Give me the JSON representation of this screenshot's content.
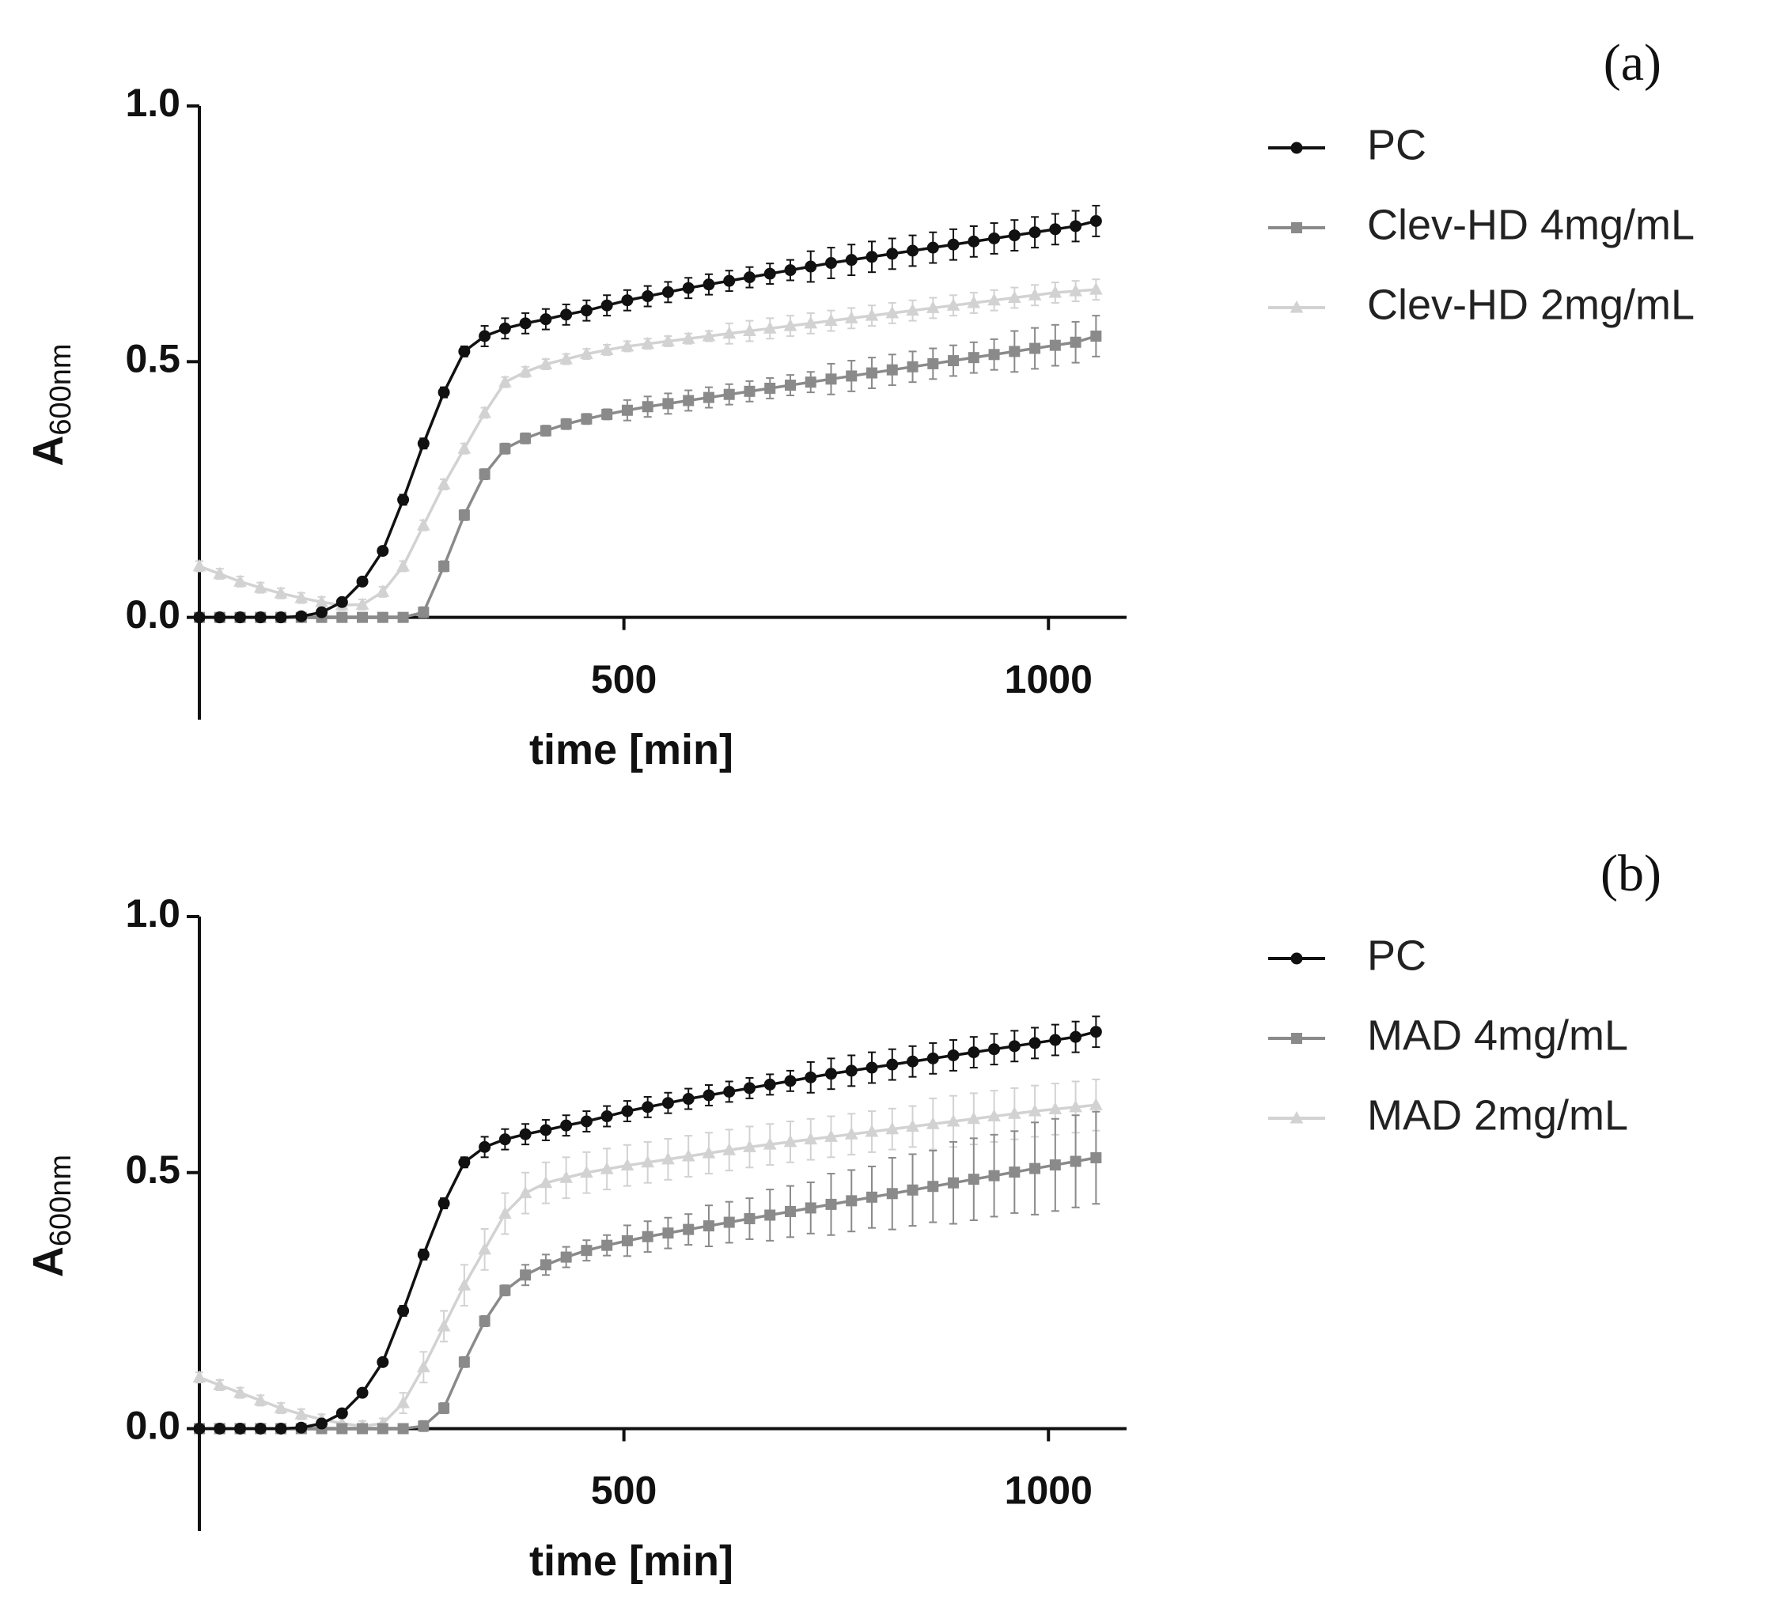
{
  "chart_data": [
    {
      "type": "line",
      "panel_label": "(a)",
      "x_label": "time [min]",
      "y_label": {
        "text": "A",
        "subscript": "600nm"
      },
      "xlim": [
        0,
        1092
      ],
      "xticks": [
        500,
        1000
      ],
      "ylim": [
        -0.2,
        1.0
      ],
      "yticks": [
        {
          "value": 0,
          "label": "0.0"
        },
        {
          "value": 0.5,
          "label": "0.5"
        },
        {
          "value": 1.0,
          "label": "1.0"
        }
      ],
      "x": [
        0,
        24,
        48,
        72,
        96,
        120,
        144,
        168,
        192,
        216,
        240,
        264,
        288,
        312,
        336,
        360,
        384,
        408,
        432,
        456,
        480,
        504,
        528,
        552,
        576,
        600,
        624,
        648,
        672,
        696,
        720,
        744,
        768,
        792,
        816,
        840,
        864,
        888,
        912,
        936,
        960,
        984,
        1008,
        1032,
        1056
      ],
      "series": [
        {
          "name": "PC",
          "color": "#111111",
          "marker": "circle",
          "values": [
            0,
            0,
            0,
            0,
            0,
            0.002,
            0.01,
            0.03,
            0.07,
            0.13,
            0.23,
            0.34,
            0.44,
            0.52,
            0.55,
            0.565,
            0.575,
            0.583,
            0.592,
            0.6,
            0.61,
            0.62,
            0.628,
            0.636,
            0.644,
            0.651,
            0.658,
            0.665,
            0.672,
            0.679,
            0.686,
            0.693,
            0.699,
            0.705,
            0.711,
            0.717,
            0.723,
            0.729,
            0.735,
            0.741,
            0.747,
            0.753,
            0.759,
            0.765,
            0.775
          ],
          "errors": [
            0,
            0,
            0,
            0,
            0,
            0,
            0,
            0,
            0,
            0,
            0.01,
            0.01,
            0.01,
            0.01,
            0.02,
            0.02,
            0.02,
            0.02,
            0.02,
            0.02,
            0.02,
            0.02,
            0.02,
            0.02,
            0.02,
            0.02,
            0.02,
            0.02,
            0.02,
            0.02,
            0.03,
            0.03,
            0.03,
            0.03,
            0.03,
            0.03,
            0.03,
            0.03,
            0.03,
            0.03,
            0.03,
            0.03,
            0.03,
            0.03,
            0.03
          ]
        },
        {
          "name": "Clev-HD 4mg/mL",
          "color": "#8a8a8a",
          "marker": "square",
          "values": [
            0,
            0,
            0,
            0,
            0,
            0,
            0,
            0,
            0,
            0,
            0,
            0.01,
            0.1,
            0.2,
            0.28,
            0.33,
            0.35,
            0.365,
            0.378,
            0.388,
            0.397,
            0.405,
            0.412,
            0.418,
            0.424,
            0.43,
            0.436,
            0.442,
            0.448,
            0.454,
            0.46,
            0.466,
            0.472,
            0.478,
            0.484,
            0.49,
            0.496,
            0.502,
            0.508,
            0.514,
            0.52,
            0.526,
            0.532,
            0.538,
            0.55
          ],
          "errors": [
            0,
            0,
            0,
            0,
            0,
            0,
            0,
            0,
            0,
            0,
            0,
            0.01,
            0.01,
            0.01,
            0.01,
            0.01,
            0.01,
            0.01,
            0.01,
            0.01,
            0.01,
            0.02,
            0.02,
            0.02,
            0.02,
            0.02,
            0.02,
            0.02,
            0.02,
            0.02,
            0.02,
            0.03,
            0.03,
            0.03,
            0.03,
            0.03,
            0.03,
            0.03,
            0.03,
            0.03,
            0.04,
            0.04,
            0.04,
            0.04,
            0.04
          ]
        },
        {
          "name": "Clev-HD 2mg/mL",
          "color": "#d2d2d2",
          "marker": "triangle",
          "values": [
            0.1,
            0.085,
            0.07,
            0.058,
            0.047,
            0.038,
            0.03,
            0.024,
            0.025,
            0.05,
            0.1,
            0.18,
            0.26,
            0.33,
            0.4,
            0.46,
            0.48,
            0.495,
            0.505,
            0.515,
            0.523,
            0.53,
            0.535,
            0.54,
            0.545,
            0.55,
            0.555,
            0.56,
            0.565,
            0.57,
            0.575,
            0.58,
            0.585,
            0.59,
            0.595,
            0.6,
            0.605,
            0.61,
            0.615,
            0.62,
            0.625,
            0.63,
            0.635,
            0.638,
            0.641
          ],
          "errors": [
            0.01,
            0.01,
            0.01,
            0.01,
            0.01,
            0.01,
            0.01,
            0.01,
            0.01,
            0.01,
            0.01,
            0.01,
            0.01,
            0.01,
            0.01,
            0.01,
            0.01,
            0.01,
            0.01,
            0.01,
            0.01,
            0.01,
            0.01,
            0.01,
            0.01,
            0.01,
            0.02,
            0.02,
            0.02,
            0.02,
            0.02,
            0.02,
            0.02,
            0.02,
            0.02,
            0.02,
            0.02,
            0.02,
            0.02,
            0.02,
            0.02,
            0.02,
            0.02,
            0.02,
            0.02
          ]
        }
      ]
    },
    {
      "type": "line",
      "panel_label": "(b)",
      "x_label": "time [min]",
      "y_label": {
        "text": "A",
        "subscript": "600nm"
      },
      "xlim": [
        0,
        1092
      ],
      "xticks": [
        500,
        1000
      ],
      "ylim": [
        -0.2,
        1.0
      ],
      "yticks": [
        {
          "value": 0,
          "label": "0.0"
        },
        {
          "value": 0.5,
          "label": "0.5"
        },
        {
          "value": 1.0,
          "label": "1.0"
        }
      ],
      "x": [
        0,
        24,
        48,
        72,
        96,
        120,
        144,
        168,
        192,
        216,
        240,
        264,
        288,
        312,
        336,
        360,
        384,
        408,
        432,
        456,
        480,
        504,
        528,
        552,
        576,
        600,
        624,
        648,
        672,
        696,
        720,
        744,
        768,
        792,
        816,
        840,
        864,
        888,
        912,
        936,
        960,
        984,
        1008,
        1032,
        1056
      ],
      "series": [
        {
          "name": "PC",
          "color": "#111111",
          "marker": "circle",
          "values": [
            0,
            0,
            0,
            0,
            0,
            0.002,
            0.01,
            0.03,
            0.07,
            0.13,
            0.23,
            0.34,
            0.44,
            0.52,
            0.55,
            0.565,
            0.575,
            0.583,
            0.592,
            0.6,
            0.61,
            0.62,
            0.628,
            0.636,
            0.644,
            0.651,
            0.658,
            0.665,
            0.672,
            0.679,
            0.686,
            0.693,
            0.699,
            0.705,
            0.711,
            0.717,
            0.723,
            0.729,
            0.735,
            0.741,
            0.747,
            0.753,
            0.759,
            0.765,
            0.775
          ],
          "errors": [
            0,
            0,
            0,
            0,
            0,
            0,
            0,
            0,
            0,
            0,
            0.01,
            0.01,
            0.01,
            0.01,
            0.02,
            0.02,
            0.02,
            0.02,
            0.02,
            0.02,
            0.02,
            0.02,
            0.02,
            0.02,
            0.02,
            0.02,
            0.02,
            0.02,
            0.02,
            0.02,
            0.03,
            0.03,
            0.03,
            0.03,
            0.03,
            0.03,
            0.03,
            0.03,
            0.03,
            0.03,
            0.03,
            0.03,
            0.03,
            0.03,
            0.03
          ]
        },
        {
          "name": "MAD 4mg/mL",
          "color": "#8a8a8a",
          "marker": "square",
          "values": [
            0,
            0,
            0,
            0,
            0,
            0,
            0,
            0,
            0,
            0,
            0,
            0.005,
            0.04,
            0.13,
            0.21,
            0.27,
            0.3,
            0.32,
            0.335,
            0.348,
            0.358,
            0.367,
            0.375,
            0.382,
            0.389,
            0.396,
            0.403,
            0.41,
            0.417,
            0.424,
            0.431,
            0.438,
            0.445,
            0.452,
            0.459,
            0.466,
            0.473,
            0.48,
            0.487,
            0.494,
            0.501,
            0.508,
            0.515,
            0.522,
            0.529
          ],
          "errors": [
            0,
            0,
            0,
            0,
            0,
            0,
            0,
            0,
            0,
            0,
            0,
            0.01,
            0.01,
            0.01,
            0.01,
            0.01,
            0.02,
            0.02,
            0.02,
            0.02,
            0.02,
            0.03,
            0.03,
            0.03,
            0.03,
            0.04,
            0.04,
            0.04,
            0.05,
            0.05,
            0.05,
            0.06,
            0.06,
            0.06,
            0.07,
            0.07,
            0.07,
            0.08,
            0.08,
            0.08,
            0.08,
            0.09,
            0.09,
            0.09,
            0.09
          ]
        },
        {
          "name": "MAD 2mg/mL",
          "color": "#d2d2d2",
          "marker": "triangle",
          "values": [
            0.1,
            0.085,
            0.07,
            0.055,
            0.04,
            0.028,
            0.018,
            0.01,
            0.005,
            0.01,
            0.05,
            0.12,
            0.2,
            0.28,
            0.35,
            0.42,
            0.46,
            0.48,
            0.49,
            0.5,
            0.507,
            0.514,
            0.52,
            0.526,
            0.532,
            0.538,
            0.544,
            0.55,
            0.555,
            0.56,
            0.565,
            0.57,
            0.575,
            0.58,
            0.585,
            0.59,
            0.595,
            0.6,
            0.605,
            0.61,
            0.615,
            0.62,
            0.624,
            0.628,
            0.632
          ],
          "errors": [
            0.01,
            0.01,
            0.01,
            0.01,
            0.01,
            0.01,
            0.01,
            0.01,
            0.01,
            0.01,
            0.02,
            0.03,
            0.03,
            0.04,
            0.04,
            0.04,
            0.04,
            0.04,
            0.04,
            0.04,
            0.04,
            0.04,
            0.04,
            0.04,
            0.04,
            0.04,
            0.04,
            0.04,
            0.04,
            0.04,
            0.04,
            0.04,
            0.04,
            0.04,
            0.04,
            0.04,
            0.05,
            0.05,
            0.05,
            0.05,
            0.05,
            0.05,
            0.05,
            0.05,
            0.05
          ]
        }
      ]
    }
  ]
}
